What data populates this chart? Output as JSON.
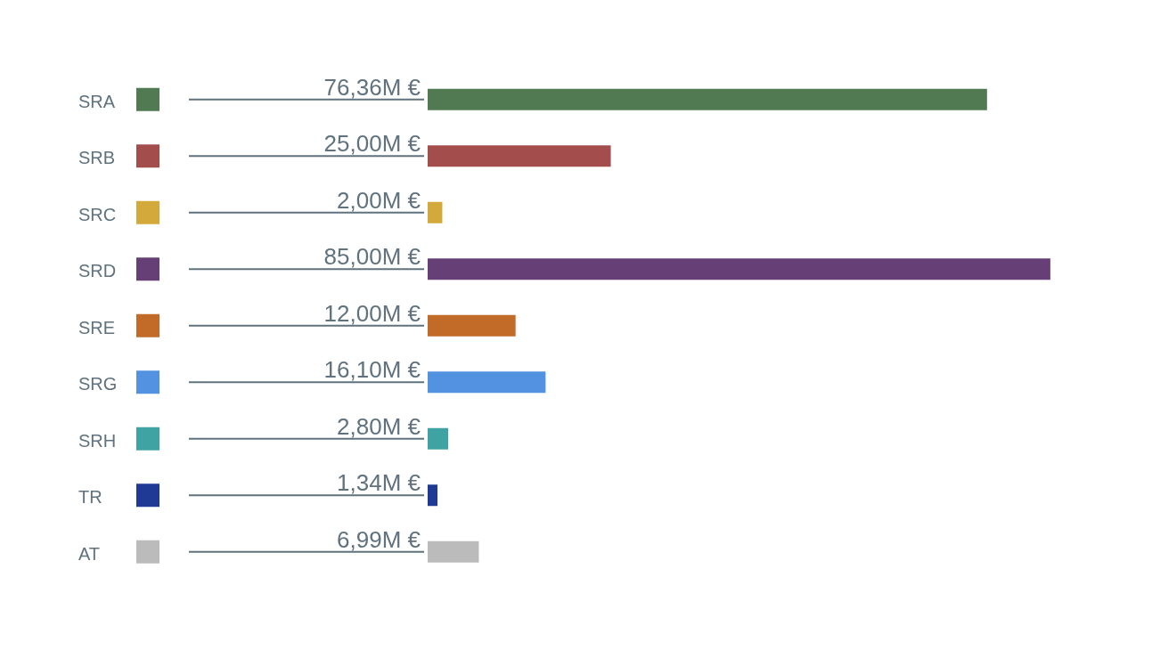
{
  "chart_data": {
    "type": "bar",
    "orientation": "horizontal",
    "categories": [
      "SRA",
      "SRB",
      "SRC",
      "SRD",
      "SRE",
      "SRG",
      "SRH",
      "TR",
      "AT"
    ],
    "values": [
      76.36,
      25,
      2,
      85,
      12,
      16.1,
      2.8,
      1.34,
      6.99
    ],
    "colors": [
      "#527a52",
      "#a34d4d",
      "#d4a93b",
      "#653f75",
      "#c26a28",
      "#5292e0",
      "#40a3a3",
      "#1f3a94",
      "#bbbbbb"
    ],
    "value_labels": [
      "76,36M €",
      "25,00M €",
      "2,00M €",
      "85,00M €",
      "12,00M €",
      "16,10M €",
      "2,80M €",
      "1,34M €",
      "6,99M €"
    ]
  }
}
